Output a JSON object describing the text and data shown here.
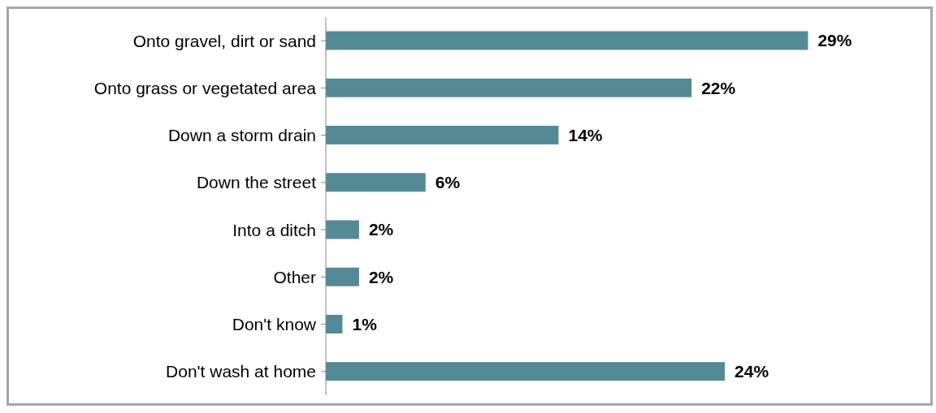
{
  "chart_data": {
    "type": "bar",
    "orientation": "horizontal",
    "categories": [
      "Onto gravel, dirt or sand",
      "Onto grass or vegetated area",
      "Down a storm drain",
      "Down the street",
      "Into a ditch",
      "Other",
      "Don't know",
      "Don't wash at home"
    ],
    "values": [
      29,
      22,
      14,
      6,
      2,
      2,
      1,
      24
    ],
    "value_labels": [
      "29%",
      "22%",
      "14%",
      "6%",
      "2%",
      "2%",
      "1%",
      "24%"
    ],
    "color": "#548a96",
    "tick_labels": "y"
  }
}
